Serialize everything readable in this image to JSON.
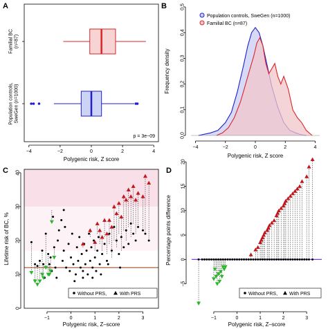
{
  "panels": {
    "a": "A",
    "b": "B",
    "c": "C",
    "d": "D"
  },
  "chart_data": [
    {
      "type": "box",
      "panel": "A",
      "xlabel": "Polygenic risk, Z score",
      "xlim": [
        -4.3,
        4.3
      ],
      "xticks": [
        -4,
        -2,
        0,
        2,
        4
      ],
      "groups": [
        {
          "name": "Familial BC\n(n=87)",
          "label_lines": [
            "Familial BC",
            "(n=87)"
          ],
          "color": "#d9262b",
          "fill": "#f7d3d3",
          "whisker_low": -1.8,
          "q1": -0.1,
          "median": 0.65,
          "q3": 1.55,
          "whisker_high": 3.5,
          "outliers": []
        },
        {
          "name": "Population controls,\nSweGen (n=1000)",
          "label_lines": [
            "Population controls,",
            "SweGen (n=1000)"
          ],
          "color": "#1f1fcc",
          "fill": "#cdd3f5",
          "whisker_low": -2.4,
          "q1": -0.65,
          "median": 0.0,
          "q3": 0.65,
          "whisker_high": 2.75,
          "outliers": [
            -3.85,
            -3.7,
            -3.35,
            2.85,
            2.95
          ]
        }
      ],
      "annotation": "p = 3e−09"
    },
    {
      "type": "area",
      "panel": "B",
      "xlabel": "Polygenic risk, Z score",
      "ylabel": "Frequency density",
      "xlim": [
        -4.3,
        4.3
      ],
      "ylim": [
        0,
        0.5
      ],
      "xticks": [
        -4,
        -2,
        0,
        2,
        4
      ],
      "yticks": [
        0.0,
        0.1,
        0.2,
        0.3,
        0.4,
        0.5
      ],
      "legend": "top-right",
      "series": [
        {
          "name": "Population controls, SweGen (n=1000)",
          "color": "#1f1fcc",
          "fill": "#c8cdf3",
          "marker": "circle",
          "x": [
            -3.8,
            -3.0,
            -2.5,
            -2.0,
            -1.6,
            -1.2,
            -0.8,
            -0.5,
            -0.25,
            0.0,
            0.25,
            0.5,
            0.8,
            1.1,
            1.5,
            1.9,
            2.3,
            2.7,
            3.0,
            3.4
          ],
          "y": [
            0.0,
            0.01,
            0.02,
            0.05,
            0.09,
            0.17,
            0.27,
            0.35,
            0.4,
            0.42,
            0.4,
            0.35,
            0.27,
            0.19,
            0.11,
            0.05,
            0.02,
            0.01,
            0.004,
            0.0
          ]
        },
        {
          "name": "Familial BC (n=87)",
          "color": "#d9262b",
          "fill": "#f2c6c9",
          "marker": "circle",
          "x": [
            -2.6,
            -2.2,
            -1.8,
            -1.4,
            -1.0,
            -0.7,
            -0.4,
            -0.1,
            0.1,
            0.3,
            0.5,
            0.7,
            0.9,
            1.1,
            1.3,
            1.5,
            1.7,
            1.9,
            2.2,
            2.5,
            2.8,
            3.1,
            3.4,
            3.8
          ],
          "y": [
            0.0,
            0.01,
            0.03,
            0.07,
            0.13,
            0.19,
            0.25,
            0.31,
            0.36,
            0.38,
            0.35,
            0.28,
            0.24,
            0.26,
            0.28,
            0.23,
            0.2,
            0.23,
            0.18,
            0.1,
            0.07,
            0.05,
            0.02,
            0.0
          ]
        }
      ]
    },
    {
      "type": "scatter",
      "panel": "C",
      "xlabel": "Polygenic risk, Z–score",
      "ylabel": "Lifetime risk of BC, %",
      "xlim": [
        -1.95,
        3.65
      ],
      "ylim": [
        0,
        41
      ],
      "xticks": [
        -1,
        0,
        1,
        2,
        3
      ],
      "yticks": [
        0,
        10,
        20,
        30,
        40
      ],
      "reference_line": 12,
      "bands": [
        {
          "from": 30,
          "to": 41,
          "color": "#f9dfe8"
        },
        {
          "from": 17,
          "to": 30,
          "color": "#fdf2f5"
        }
      ],
      "legend": "bottom-right",
      "legend_entries": [
        "Without PRS,",
        "With PRS"
      ],
      "without_prs": [
        [
          -1.65,
          19.5
        ],
        [
          -1.5,
          13
        ],
        [
          -1.4,
          12.5
        ],
        [
          -1.3,
          14
        ],
        [
          -1.2,
          17
        ],
        [
          -1.15,
          13
        ],
        [
          -1.05,
          22
        ],
        [
          -0.95,
          16
        ],
        [
          -0.9,
          13
        ],
        [
          -0.85,
          15
        ],
        [
          -0.8,
          11
        ],
        [
          -0.7,
          18
        ],
        [
          -0.65,
          12
        ],
        [
          -0.55,
          20
        ],
        [
          -0.5,
          23
        ],
        [
          -0.4,
          26
        ],
        [
          -0.35,
          14
        ],
        [
          -0.3,
          17
        ],
        [
          -0.25,
          24
        ],
        [
          -0.2,
          12
        ],
        [
          -0.1,
          19
        ],
        [
          -0.05,
          11
        ],
        [
          0.0,
          15
        ],
        [
          0.05,
          22
        ],
        [
          0.1,
          13
        ],
        [
          0.2,
          10
        ],
        [
          0.25,
          18
        ],
        [
          0.3,
          14
        ],
        [
          0.35,
          21
        ],
        [
          0.4,
          12
        ],
        [
          0.45,
          16
        ],
        [
          0.5,
          11
        ],
        [
          0.55,
          19
        ],
        [
          0.6,
          13
        ],
        [
          0.65,
          17
        ],
        [
          0.7,
          10
        ],
        [
          0.75,
          22
        ],
        [
          0.8,
          14
        ],
        [
          0.85,
          18
        ],
        [
          0.9,
          12
        ],
        [
          0.95,
          20
        ],
        [
          1.0,
          15
        ],
        [
          1.05,
          11
        ],
        [
          1.1,
          17
        ],
        [
          1.15,
          21
        ],
        [
          1.2,
          13
        ],
        [
          1.3,
          16
        ],
        [
          1.4,
          19
        ],
        [
          1.5,
          14
        ],
        [
          1.6,
          22
        ],
        [
          1.7,
          17
        ],
        [
          1.8,
          24
        ],
        [
          1.9,
          20
        ],
        [
          2.0,
          16
        ],
        [
          2.1,
          21
        ],
        [
          2.2,
          18
        ],
        [
          2.3,
          23
        ],
        [
          2.4,
          19
        ],
        [
          2.5,
          25
        ],
        [
          2.6,
          22
        ],
        [
          2.7,
          20
        ],
        [
          2.8,
          24
        ],
        [
          3.0,
          23
        ],
        [
          3.1,
          22
        ],
        [
          3.25,
          20
        ],
        [
          -0.6,
          9
        ],
        [
          0.15,
          8
        ],
        [
          0.5,
          9
        ],
        [
          -1.1,
          9
        ],
        [
          0.9,
          9
        ],
        [
          1.25,
          10
        ],
        [
          -0.3,
          29
        ],
        [
          -0.75,
          27
        ],
        [
          1.55,
          13
        ],
        [
          2.05,
          12
        ]
      ],
      "with_prs": [
        {
          "x": -1.65,
          "from": 19.5,
          "to": 10.5
        },
        {
          "x": -1.5,
          "from": 13,
          "to": 8
        },
        {
          "x": -1.4,
          "from": 12.5,
          "to": 7
        },
        {
          "x": -1.3,
          "from": 14,
          "to": 8
        },
        {
          "x": -1.2,
          "from": 17,
          "to": 10
        },
        {
          "x": -1.15,
          "from": 13,
          "to": 9
        },
        {
          "x": -1.05,
          "from": 22,
          "to": 12
        },
        {
          "x": -0.95,
          "from": 16,
          "to": 10
        },
        {
          "x": -0.9,
          "from": 13,
          "to": 10
        },
        {
          "x": -0.85,
          "from": 15,
          "to": 11
        },
        {
          "x": -0.8,
          "from": 29,
          "to": 25.5
        },
        {
          "x": -0.7,
          "from": 18,
          "to": 15
        },
        {
          "x": 0.5,
          "from": 18,
          "to": 19
        },
        {
          "x": 0.8,
          "from": 21,
          "to": 23
        },
        {
          "x": 1.0,
          "from": 17,
          "to": 19.5
        },
        {
          "x": 1.1,
          "from": 22,
          "to": 25
        },
        {
          "x": 1.2,
          "from": 19,
          "to": 23
        },
        {
          "x": 1.3,
          "from": 17,
          "to": 21
        },
        {
          "x": 1.4,
          "from": 21,
          "to": 26
        },
        {
          "x": 1.5,
          "from": 16,
          "to": 22
        },
        {
          "x": 1.6,
          "from": 19,
          "to": 26
        },
        {
          "x": 1.7,
          "from": 15,
          "to": 24
        },
        {
          "x": 1.8,
          "from": 20,
          "to": 30
        },
        {
          "x": 1.9,
          "from": 18,
          "to": 28
        },
        {
          "x": 2.0,
          "from": 22,
          "to": 31
        },
        {
          "x": 2.1,
          "from": 17,
          "to": 27
        },
        {
          "x": 2.2,
          "from": 23,
          "to": 33
        },
        {
          "x": 2.3,
          "from": 20,
          "to": 32
        },
        {
          "x": 2.4,
          "from": 24,
          "to": 35
        },
        {
          "x": 2.5,
          "from": 21,
          "to": 33
        },
        {
          "x": 2.6,
          "from": 25,
          "to": 36
        },
        {
          "x": 2.7,
          "from": 22,
          "to": 32
        },
        {
          "x": 2.8,
          "from": 24,
          "to": 34
        },
        {
          "x": 3.0,
          "from": 23,
          "to": 33
        },
        {
          "x": 3.1,
          "from": 22,
          "to": 39
        },
        {
          "x": 3.25,
          "from": 20,
          "to": 37
        }
      ]
    },
    {
      "type": "scatter",
      "panel": "D",
      "xlabel": "Polygenic risk, Z–score",
      "ylabel": "Percentage points difference",
      "xlim": [
        -1.95,
        3.65
      ],
      "ylim": [
        -10,
        22
      ],
      "xticks": [
        -1,
        0,
        1,
        2,
        3
      ],
      "yticks": [
        -5,
        0,
        5,
        10,
        15,
        20
      ],
      "reference_line": 0,
      "legend": "bottom-right",
      "legend_entries": [
        "Without PRS,",
        "With PRS"
      ],
      "without_prs_x": [
        -1.65,
        -1.5,
        -1.4,
        -1.3,
        -1.2,
        -1.1,
        -1.0,
        -0.9,
        -0.8,
        -0.7,
        -0.6,
        -0.5,
        -0.4,
        -0.3,
        -0.2,
        -0.1,
        0.0,
        0.1,
        0.2,
        0.3,
        0.4,
        0.5,
        0.6,
        0.7,
        0.8,
        0.9,
        1.0,
        1.1,
        1.2,
        1.3,
        1.4,
        1.5,
        1.6,
        1.7,
        1.8,
        1.9,
        2.0,
        2.1,
        2.2,
        2.3,
        2.4,
        2.5,
        2.6,
        2.7,
        2.8,
        2.9,
        3.0,
        3.1,
        3.25
      ],
      "with_prs": [
        {
          "x": -1.65,
          "y": -9
        },
        {
          "x": -1.0,
          "y": -4
        },
        {
          "x": -0.95,
          "y": -2
        },
        {
          "x": -0.9,
          "y": -3.5
        },
        {
          "x": -0.85,
          "y": -5
        },
        {
          "x": -0.8,
          "y": -3
        },
        {
          "x": -0.75,
          "y": -4.5
        },
        {
          "x": -0.7,
          "y": -2.5
        },
        {
          "x": -0.65,
          "y": -3.5
        },
        {
          "x": -0.6,
          "y": -1.5
        },
        {
          "x": -0.55,
          "y": -2
        },
        {
          "x": -0.5,
          "y": -1.5
        },
        {
          "x": 0.6,
          "y": 1
        },
        {
          "x": 0.8,
          "y": 2
        },
        {
          "x": 0.9,
          "y": 2.5
        },
        {
          "x": 1.0,
          "y": 3.5
        },
        {
          "x": 1.05,
          "y": 4
        },
        {
          "x": 1.1,
          "y": 4.5
        },
        {
          "x": 1.15,
          "y": 5
        },
        {
          "x": 1.2,
          "y": 5.5
        },
        {
          "x": 1.3,
          "y": 6
        },
        {
          "x": 1.35,
          "y": 6.5
        },
        {
          "x": 1.4,
          "y": 7
        },
        {
          "x": 1.5,
          "y": 7.5
        },
        {
          "x": 1.6,
          "y": 8
        },
        {
          "x": 1.7,
          "y": 9
        },
        {
          "x": 1.75,
          "y": 9.5
        },
        {
          "x": 1.8,
          "y": 10
        },
        {
          "x": 1.9,
          "y": 10.5
        },
        {
          "x": 2.0,
          "y": 11
        },
        {
          "x": 2.05,
          "y": 11.5
        },
        {
          "x": 2.1,
          "y": 12
        },
        {
          "x": 2.2,
          "y": 12.5
        },
        {
          "x": 2.3,
          "y": 13
        },
        {
          "x": 2.4,
          "y": 13.5
        },
        {
          "x": 2.5,
          "y": 14
        },
        {
          "x": 2.6,
          "y": 14.5
        },
        {
          "x": 2.7,
          "y": 15
        },
        {
          "x": 2.8,
          "y": 16
        },
        {
          "x": 3.0,
          "y": 17
        },
        {
          "x": 3.1,
          "y": 19
        },
        {
          "x": 3.25,
          "y": 20.5
        }
      ]
    }
  ]
}
